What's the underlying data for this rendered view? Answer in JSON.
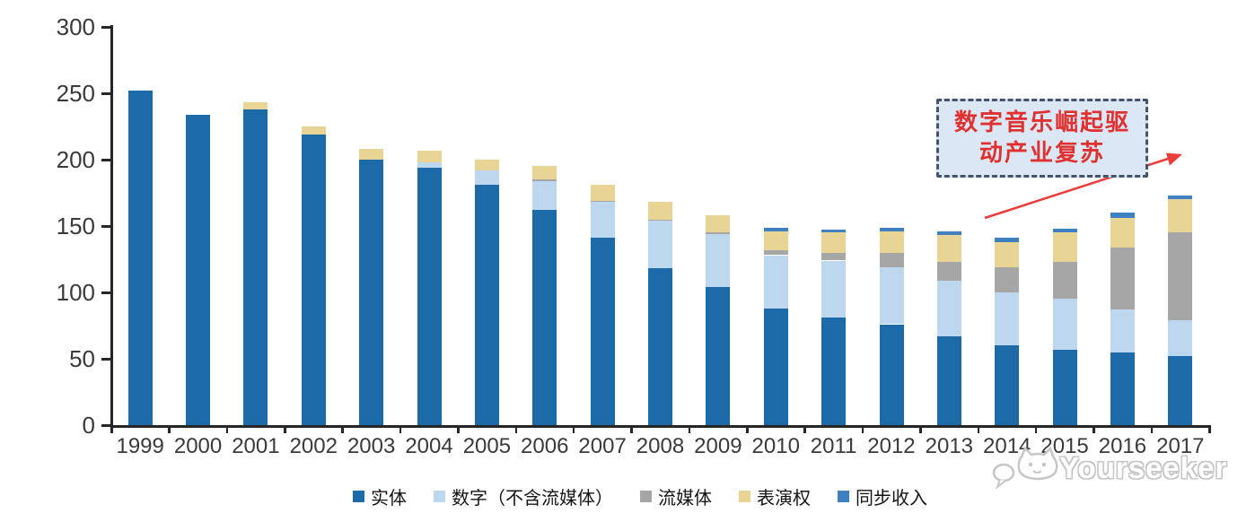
{
  "chart_data": {
    "type": "bar",
    "stacked": true,
    "title": "",
    "xlabel": "",
    "ylabel": "",
    "categories": [
      "1999",
      "2000",
      "2001",
      "2002",
      "2003",
      "2004",
      "2005",
      "2006",
      "2007",
      "2008",
      "2009",
      "2010",
      "2011",
      "2012",
      "2013",
      "2014",
      "2015",
      "2016",
      "2017"
    ],
    "series": [
      {
        "name": "实体",
        "color": "#1C6BA8",
        "values": [
          252,
          234,
          238,
          219,
          200,
          194,
          181,
          162,
          141,
          118,
          104,
          88,
          81,
          76,
          67,
          60,
          57,
          55,
          52
        ]
      },
      {
        "name": "数字（不含流媒体）",
        "color": "#BDD7EE",
        "values": [
          0,
          0,
          0,
          0,
          0,
          4,
          11,
          22,
          27,
          36,
          40,
          40,
          43,
          43,
          42,
          40,
          38,
          32,
          27
        ]
      },
      {
        "name": "流媒体",
        "color": "#A6A6A6",
        "values": [
          0,
          0,
          0,
          0,
          0,
          0,
          0,
          1,
          1,
          1,
          1,
          4,
          6,
          11,
          14,
          19,
          28,
          47,
          66
        ]
      },
      {
        "name": "表演权",
        "color": "#E8D596",
        "values": [
          0,
          0,
          5,
          6,
          8,
          9,
          8,
          10,
          12,
          13,
          13,
          14,
          15,
          16,
          20,
          19,
          22,
          22,
          25
        ]
      },
      {
        "name": "同步收入",
        "color": "#3F80C1",
        "values": [
          0,
          0,
          0,
          0,
          0,
          0,
          0,
          0,
          0,
          0,
          0,
          3,
          2,
          3,
          3,
          3,
          3,
          4,
          3
        ]
      }
    ],
    "ylim": [
      0,
      300
    ],
    "yticks": [
      0,
      50,
      100,
      150,
      200,
      250,
      300
    ],
    "grid": false,
    "legend_position": "bottom"
  },
  "annotation": {
    "line1": "数字音乐崛起驱",
    "line2": "动产业复苏",
    "text_color": "#E03131",
    "border_color": "#44546A",
    "fill_color": "#DBE7F4",
    "arrow_color": "#EC3B3B"
  },
  "watermark": {
    "text": "Yourseeker",
    "logo": "cat-speech-bubble-logo",
    "color": "#C6C6C6"
  },
  "axis": {
    "line_color": "#262626",
    "label_color": "#3A3A3A"
  }
}
